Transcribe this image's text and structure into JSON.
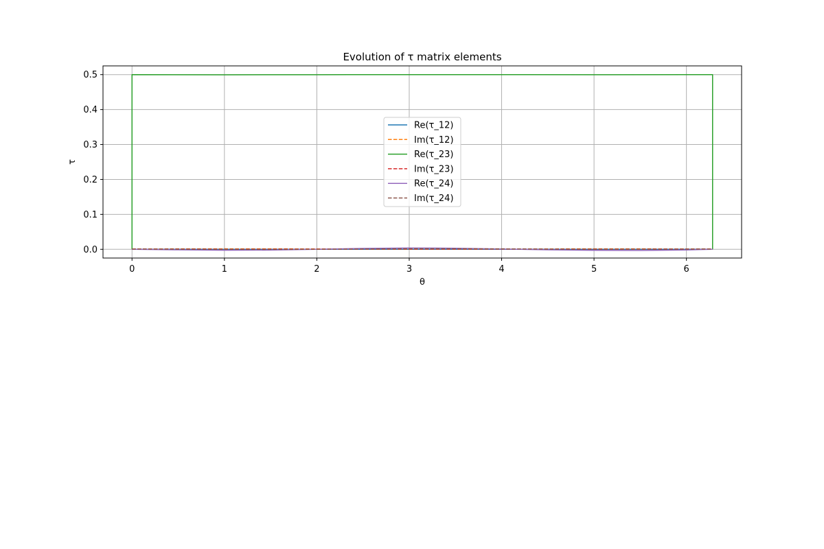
{
  "chart_data": {
    "type": "line",
    "title": "Evolution of τ matrix elements",
    "xlabel": "θ",
    "ylabel": "τ",
    "xlim": [
      -0.314,
      6.597
    ],
    "ylim": [
      -0.025,
      0.525
    ],
    "xticks": [
      0,
      1,
      2,
      3,
      4,
      5,
      6
    ],
    "yticks": [
      0.0,
      0.1,
      0.2,
      0.3,
      0.4,
      0.5
    ],
    "xtick_labels": [
      "0",
      "1",
      "2",
      "3",
      "4",
      "5",
      "6"
    ],
    "ytick_labels": [
      "0.0",
      "0.1",
      "0.2",
      "0.3",
      "0.4",
      "0.5"
    ],
    "grid": true,
    "legend_position": "center",
    "series": [
      {
        "name": "Re(τ_12)",
        "color": "#1f77b4",
        "style": "solid",
        "x": [
          0,
          0.5,
          1,
          1.5,
          2,
          2.5,
          3,
          3.5,
          4,
          4.5,
          5,
          5.5,
          6,
          6.283
        ],
        "y": [
          0,
          0,
          0,
          0,
          0,
          0,
          0,
          0,
          0,
          0,
          0,
          0,
          0,
          0
        ]
      },
      {
        "name": "Im(τ_12)",
        "color": "#ff7f0e",
        "style": "dashed",
        "x": [
          0,
          0.5,
          1,
          1.5,
          2,
          2.5,
          3,
          3.5,
          4,
          4.5,
          5,
          5.5,
          6,
          6.283
        ],
        "y": [
          0.001,
          0.0012,
          0.0014,
          0.0013,
          0.001,
          0.0007,
          0.0004,
          0.0005,
          0.0008,
          0.0011,
          0.0013,
          0.0012,
          0.001,
          0.001
        ]
      },
      {
        "name": "Re(τ_23)",
        "color": "#2ca02c",
        "style": "solid",
        "x": [
          0,
          0,
          1,
          2,
          3,
          4,
          5,
          6,
          6.283,
          6.283
        ],
        "y": [
          0.0,
          0.5,
          0.4995,
          0.4998,
          0.5,
          0.5,
          0.4998,
          0.4999,
          0.5,
          0.0
        ]
      },
      {
        "name": "Im(τ_23)",
        "color": "#d62728",
        "style": "dashed",
        "x": [
          0,
          0.5,
          1,
          1.5,
          2,
          2.5,
          3,
          3.5,
          4,
          4.5,
          5,
          5.5,
          6,
          6.283
        ],
        "y": [
          0.0005,
          0.0005,
          0.0004,
          0.0004,
          0.0005,
          0.0006,
          0.0006,
          0.0006,
          0.0005,
          0.0004,
          0.0004,
          0.0004,
          0.0005,
          0.0005
        ]
      },
      {
        "name": "Re(τ_24)",
        "color": "#9467bd",
        "style": "solid",
        "x": [
          0,
          0.5,
          1,
          1.5,
          2,
          2.5,
          3,
          3.5,
          4,
          4.5,
          5,
          5.5,
          6,
          6.283
        ],
        "y": [
          0.0,
          -0.0015,
          -0.0027,
          -0.0022,
          0.0,
          0.0025,
          0.0038,
          0.0031,
          0.0008,
          -0.0015,
          -0.003,
          -0.0033,
          -0.0018,
          0.0
        ]
      },
      {
        "name": "Im(τ_24)",
        "color": "#8c564b",
        "style": "dashed",
        "x": [
          0,
          0.5,
          1,
          1.5,
          2,
          2.5,
          3,
          3.5,
          4,
          4.5,
          5,
          5.5,
          6,
          6.283
        ],
        "y": [
          0.0008,
          0.0004,
          0.0,
          -0.0002,
          0.0,
          0.0007,
          0.0014,
          0.0016,
          0.0012,
          0.0006,
          0.0002,
          0.0002,
          0.0006,
          0.0008
        ]
      }
    ]
  }
}
